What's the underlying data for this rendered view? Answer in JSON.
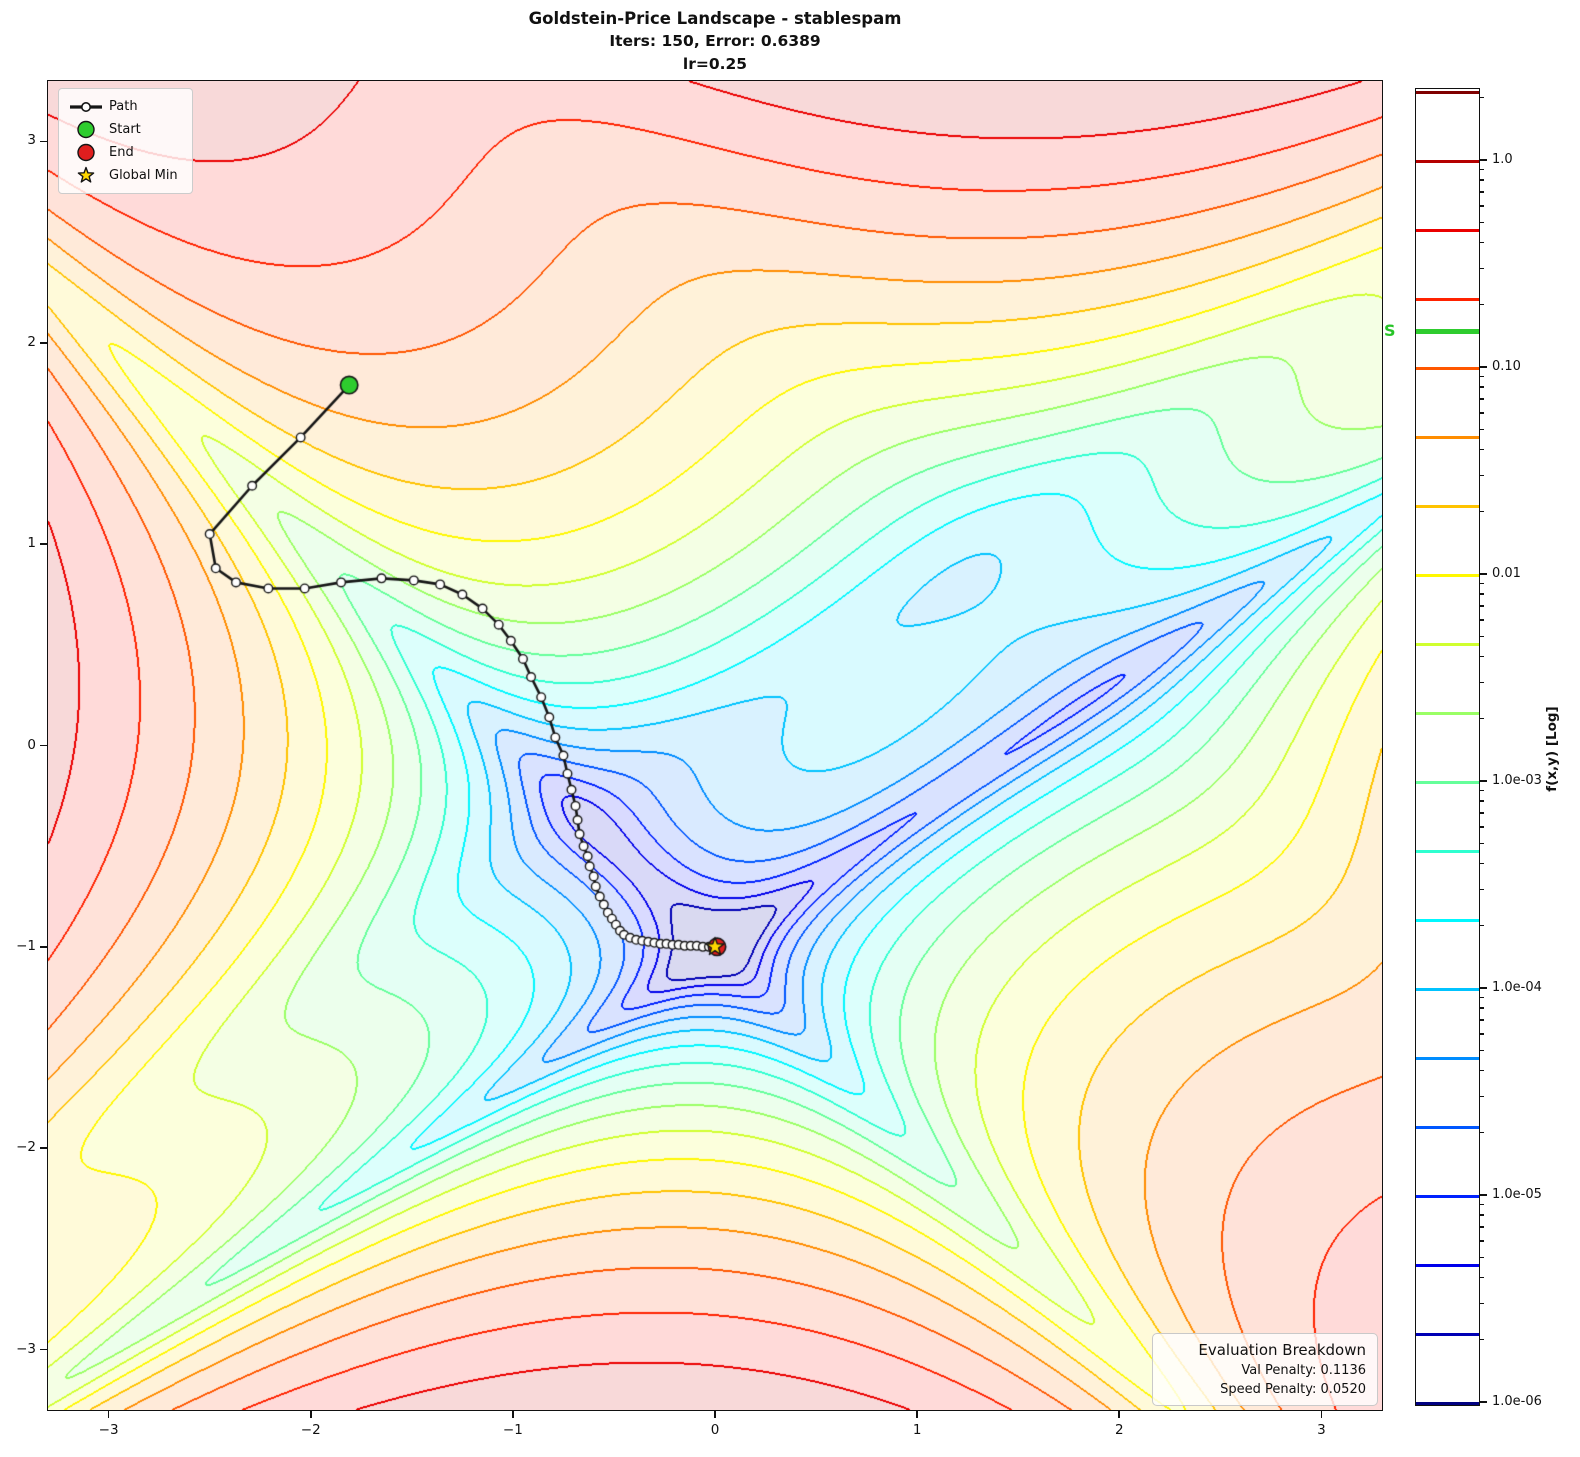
{
  "title": {
    "line1": "Goldstein-Price Landscape - stablespam",
    "line2": "Iters: 150, Error: 0.6389",
    "line3": "lr=0.25"
  },
  "legend": {
    "path_label": "Path",
    "start_label": "Start",
    "end_label": "End",
    "global_min_label": "Global Min"
  },
  "axes": {
    "x_tick_values": [
      -3,
      -2,
      -1,
      0,
      1,
      2,
      3
    ],
    "x_tick_labels": [
      "−3",
      "−2",
      "−1",
      "0",
      "1",
      "2",
      "3"
    ],
    "y_tick_values": [
      -3,
      -2,
      -1,
      0,
      1,
      2,
      3
    ],
    "y_tick_labels": [
      "−3",
      "−2",
      "−1",
      "0",
      "1",
      "2",
      "3"
    ],
    "x_range": [
      -3.3,
      3.3
    ],
    "y_range": [
      -3.3,
      3.3
    ]
  },
  "colorbar": {
    "label": "f(x,y) [Log]",
    "major_ticks": [
      {
        "exp": 0,
        "label": "1.0"
      },
      {
        "exp": -1,
        "label": "0.10"
      },
      {
        "exp": -2,
        "label": "0.01"
      },
      {
        "exp": -3,
        "label": "1.0e-03"
      },
      {
        "exp": -4,
        "label": "1.0e-04"
      },
      {
        "exp": -5,
        "label": "1.0e-05"
      },
      {
        "exp": -6,
        "label": "1.0e-06"
      }
    ],
    "score_marker": {
      "label": "S",
      "value": 0.15,
      "color": "#2ecc2e"
    }
  },
  "eval_box": {
    "title": "Evaluation Breakdown",
    "val_penalty": "Val Penalty: 0.1136",
    "speed_penalty": "Speed Penalty: 0.0520"
  },
  "colors": {
    "path_line": "#151515",
    "marker_fill": "#ffffff",
    "marker_edge": "#151515",
    "start": "#2ecc2e",
    "end": "#e01e1e",
    "global_min_star": "#ffd700",
    "axis": "#111111"
  },
  "chart_data": {
    "type": "contour",
    "title": "Goldstein-Price Landscape - stablespam",
    "surface": {
      "function": "goldstein_price",
      "x_range": [
        -3.3,
        3.3
      ],
      "y_range": [
        -3.3,
        3.3
      ],
      "scale": "log10 of (f-3)/max, clipped to [1e-6, 1]",
      "contour_levels_log10": {
        "min": -6,
        "max": 0.3333,
        "levels_per_decade": 3,
        "count": 20
      },
      "colormap": "jet",
      "fill_alpha": 0.15,
      "colorbar_label": "f(x,y) [Log]"
    },
    "optimizer": {
      "name": "stablespam",
      "iters": 150,
      "error": 0.6389,
      "lr": 0.25,
      "val_penalty": 0.1136,
      "speed_penalty": 0.052,
      "score_marker_value": 0.15
    },
    "path_points": [
      [
        -1.81,
        1.79
      ],
      [
        -2.05,
        1.53
      ],
      [
        -2.29,
        1.29
      ],
      [
        -2.5,
        1.05
      ],
      [
        -2.47,
        0.88
      ],
      [
        -2.37,
        0.81
      ],
      [
        -2.21,
        0.78
      ],
      [
        -2.03,
        0.78
      ],
      [
        -1.85,
        0.81
      ],
      [
        -1.65,
        0.83
      ],
      [
        -1.49,
        0.82
      ],
      [
        -1.36,
        0.8
      ],
      [
        -1.25,
        0.75
      ],
      [
        -1.15,
        0.68
      ],
      [
        -1.07,
        0.6
      ],
      [
        -1.01,
        0.52
      ],
      [
        -0.95,
        0.43
      ],
      [
        -0.91,
        0.34
      ],
      [
        -0.86,
        0.24
      ],
      [
        -0.82,
        0.14
      ],
      [
        -0.79,
        0.04
      ],
      [
        -0.75,
        -0.05
      ],
      [
        -0.73,
        -0.14
      ],
      [
        -0.71,
        -0.22
      ],
      [
        -0.69,
        -0.3
      ],
      [
        -0.68,
        -0.37
      ],
      [
        -0.67,
        -0.44
      ],
      [
        -0.65,
        -0.5
      ],
      [
        -0.63,
        -0.55
      ],
      [
        -0.62,
        -0.6
      ],
      [
        -0.6,
        -0.65
      ],
      [
        -0.59,
        -0.7
      ],
      [
        -0.57,
        -0.75
      ],
      [
        -0.55,
        -0.79
      ],
      [
        -0.53,
        -0.83
      ],
      [
        -0.51,
        -0.86
      ],
      [
        -0.49,
        -0.89
      ],
      [
        -0.47,
        -0.92
      ],
      [
        -0.45,
        -0.94
      ],
      [
        -0.42,
        -0.955
      ],
      [
        -0.39,
        -0.965
      ],
      [
        -0.36,
        -0.97
      ],
      [
        -0.33,
        -0.975
      ],
      [
        -0.3,
        -0.98
      ],
      [
        -0.27,
        -0.985
      ],
      [
        -0.24,
        -0.985
      ],
      [
        -0.21,
        -0.99
      ],
      [
        -0.18,
        -0.99
      ],
      [
        -0.15,
        -0.995
      ],
      [
        -0.12,
        -0.995
      ],
      [
        -0.09,
        -0.995
      ],
      [
        -0.06,
        -1.0
      ],
      [
        -0.03,
        -1.0
      ],
      [
        0.01,
        -1.0
      ]
    ],
    "start": [
      -1.81,
      1.79
    ],
    "end": [
      0.01,
      -1.0
    ],
    "global_min": [
      0.0,
      -1.0
    ]
  }
}
